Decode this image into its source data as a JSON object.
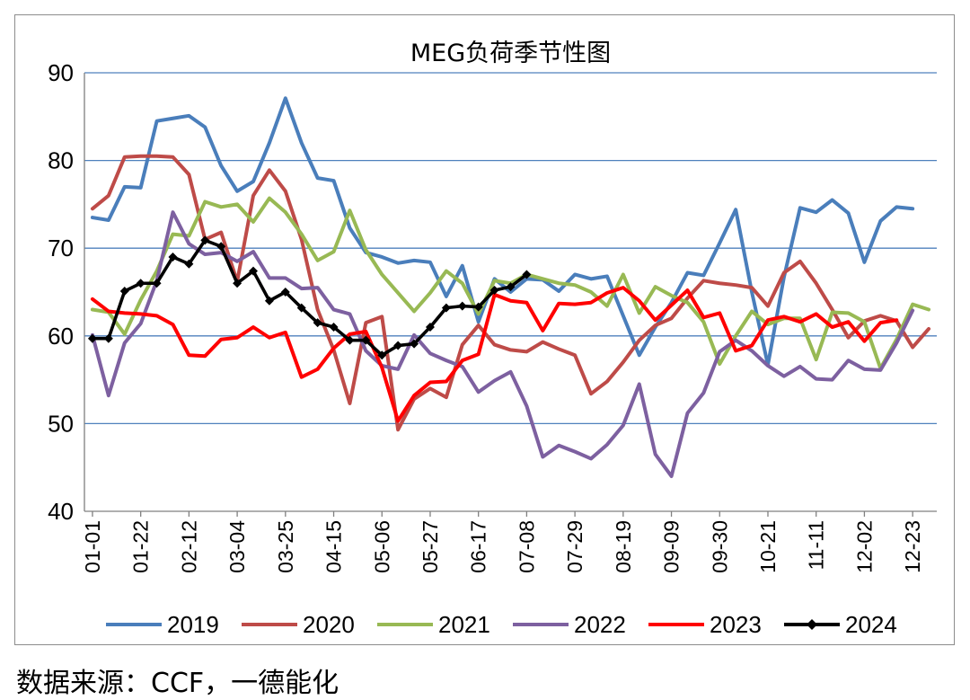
{
  "source_note": "数据来源：CCF，一德能化",
  "chart_data": {
    "type": "line",
    "title": "MEG负荷季节性图",
    "xlabel": "",
    "ylabel": "",
    "x_count": 53,
    "xtick_labels": [
      "01-01",
      "01-22",
      "02-12",
      "03-04",
      "03-25",
      "04-15",
      "05-06",
      "05-27",
      "06-17",
      "07-08",
      "07-29",
      "08-19",
      "09-09",
      "09-30",
      "10-21",
      "11-11",
      "12-02",
      "12-23"
    ],
    "ylim": [
      40,
      90
    ],
    "yticks": [
      40,
      50,
      60,
      70,
      80,
      90
    ],
    "grid": "horizontal",
    "legend_position": "bottom",
    "series": [
      {
        "name": "2019",
        "color": "#4a7ebb",
        "values": [
          73.5,
          73.2,
          77.0,
          76.9,
          84.5,
          84.8,
          85.1,
          83.8,
          79.4,
          76.5,
          77.6,
          82.0,
          87.1,
          82.0,
          78.0,
          77.7,
          72.3,
          69.5,
          69.0,
          68.3,
          68.6,
          68.4,
          64.5,
          68.0,
          61.6,
          66.5,
          65.0,
          66.5,
          66.4,
          65.1,
          67.0,
          66.5,
          66.8,
          62.3,
          57.8,
          61.0,
          63.8,
          67.2,
          66.9,
          70.6,
          74.4,
          65.0,
          56.7,
          66.7,
          74.6,
          74.1,
          75.5,
          74.0,
          68.4,
          73.1,
          74.7,
          74.5,
          null
        ]
      },
      {
        "name": "2020",
        "color": "#be4b48",
        "values": [
          74.5,
          76.0,
          80.4,
          80.5,
          80.5,
          80.4,
          78.4,
          71.0,
          71.8,
          66.2,
          76.0,
          78.9,
          76.5,
          71.0,
          63.0,
          58.4,
          52.3,
          61.5,
          62.2,
          49.3,
          52.8,
          54.0,
          53.0,
          59.0,
          61.2,
          59.0,
          58.4,
          58.2,
          59.3,
          58.5,
          57.8,
          53.4,
          54.8,
          57.0,
          59.5,
          61.2,
          62.0,
          64.3,
          66.3,
          66.0,
          65.8,
          65.5,
          63.4,
          67.2,
          68.5,
          66.0,
          63.0,
          59.8,
          61.7,
          62.3,
          61.7,
          58.7,
          60.8
        ]
      },
      {
        "name": "2021",
        "color": "#98b954",
        "values": [
          63.0,
          62.7,
          60.2,
          64.1,
          67.4,
          71.6,
          71.4,
          75.3,
          74.7,
          75.0,
          73.0,
          75.7,
          74.1,
          71.6,
          68.6,
          69.6,
          74.3,
          69.8,
          67.0,
          64.9,
          62.8,
          64.9,
          67.4,
          66.0,
          62.5,
          66.3,
          66.0,
          67.0,
          66.5,
          66.0,
          65.8,
          65.0,
          63.4,
          67.0,
          62.6,
          65.6,
          64.6,
          63.8,
          61.6,
          56.8,
          60.0,
          62.8,
          61.3,
          62.0,
          62.0,
          57.3,
          62.7,
          62.6,
          61.6,
          56.3,
          59.6,
          63.6,
          63.0
        ]
      },
      {
        "name": "2022",
        "color": "#7d60a0",
        "values": [
          60.1,
          53.2,
          59.2,
          61.4,
          66.3,
          74.1,
          70.5,
          69.3,
          69.5,
          68.5,
          69.6,
          66.6,
          66.6,
          65.4,
          65.5,
          63.0,
          62.5,
          58.3,
          56.6,
          56.2,
          60.1,
          58.0,
          57.2,
          56.5,
          53.6,
          54.9,
          55.9,
          52.0,
          46.2,
          47.5,
          46.8,
          46.0,
          47.6,
          49.8,
          54.5,
          46.5,
          44.0,
          51.2,
          53.5,
          58.2,
          59.5,
          58.3,
          56.6,
          55.4,
          56.5,
          55.1,
          55.0,
          57.2,
          56.2,
          56.1,
          59.2,
          62.9,
          null
        ]
      },
      {
        "name": "2023",
        "color": "#ff0000",
        "values": [
          64.2,
          62.8,
          62.6,
          62.5,
          62.3,
          61.3,
          57.8,
          57.7,
          59.6,
          59.8,
          61.0,
          59.8,
          60.4,
          55.3,
          56.2,
          58.6,
          60.2,
          60.5,
          56.4,
          50.3,
          53.2,
          54.7,
          54.8,
          57.2,
          57.9,
          64.7,
          64.0,
          63.8,
          60.6,
          63.7,
          63.6,
          63.8,
          64.9,
          65.5,
          64.0,
          61.8,
          63.5,
          65.2,
          62.1,
          62.6,
          58.3,
          58.9,
          61.8,
          62.2,
          61.6,
          62.5,
          61.0,
          61.6,
          59.4,
          61.5,
          61.8,
          null,
          null
        ]
      },
      {
        "name": "2024",
        "color": "#000000",
        "marker": "diamond",
        "values": [
          59.7,
          59.7,
          65.1,
          66.0,
          66.0,
          69.0,
          68.2,
          70.9,
          70.2,
          66.0,
          67.4,
          64.0,
          65.0,
          63.2,
          61.5,
          61.0,
          59.5,
          59.5,
          57.8,
          58.9,
          59.1,
          61.0,
          63.2,
          63.4,
          63.3,
          65.2,
          65.6,
          67.0,
          null,
          null,
          null,
          null,
          null,
          null,
          null,
          null,
          null,
          null,
          null,
          null,
          null,
          null,
          null,
          null,
          null,
          null,
          null,
          null,
          null,
          null,
          null,
          null,
          null
        ]
      }
    ]
  }
}
